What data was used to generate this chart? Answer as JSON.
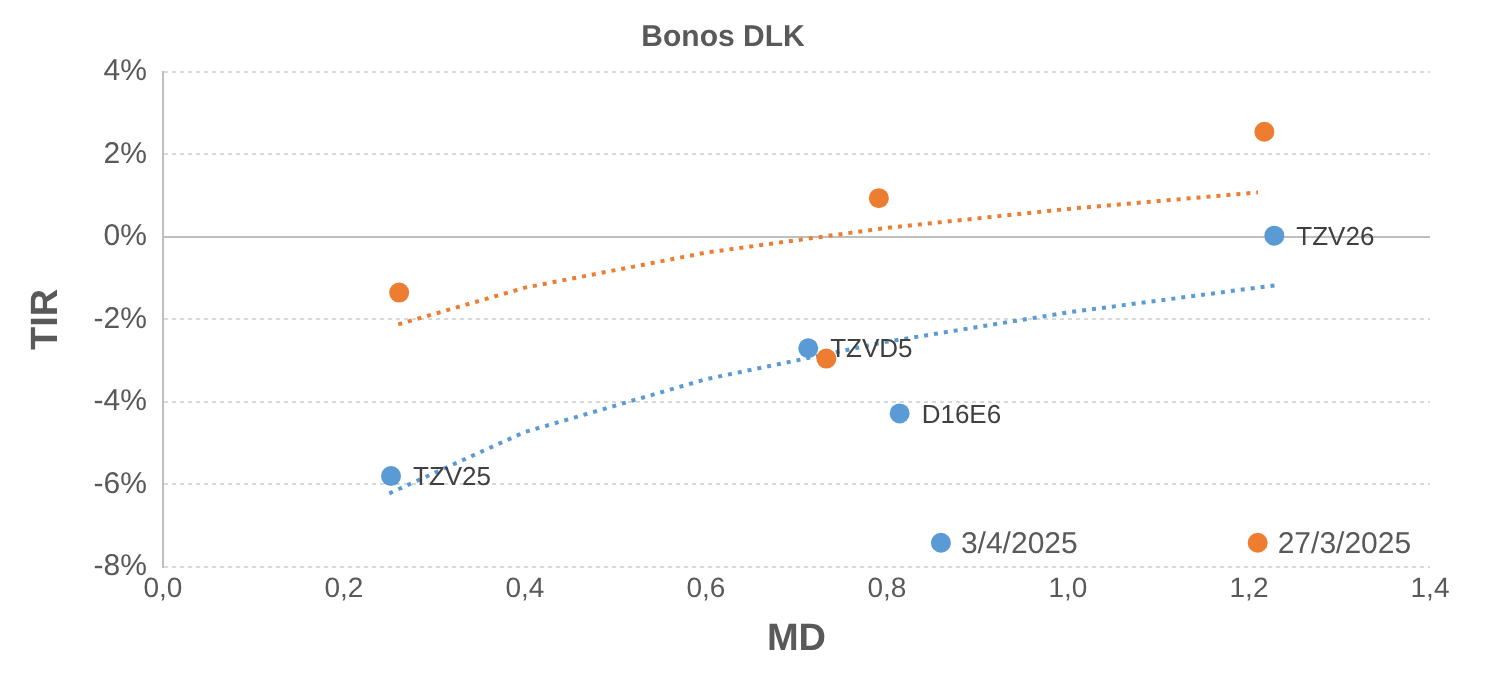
{
  "chart_data": {
    "type": "scatter",
    "title": "Bonos DLK",
    "xlabel": "MD",
    "ylabel": "TIR",
    "series": [
      {
        "name": "3/4/2025",
        "type": "scatter",
        "color": "#5b9bd5",
        "x": [
          0.252,
          0.713,
          0.814,
          1.228
        ],
        "values": [
          -5.8,
          -2.7,
          -4.28,
          0.03
        ]
      },
      {
        "name": "27/3/2025",
        "type": "scatter",
        "color": "#ed7d31",
        "x": [
          0.261,
          0.791,
          0.733,
          1.217
        ],
        "values": [
          -1.35,
          0.94,
          -2.95,
          2.55
        ]
      },
      {
        "type": "line",
        "color": "#5b9bd5",
        "line_style": "dotted",
        "marker": "none",
        "x": [
          0.25,
          0.4,
          0.6,
          0.8,
          1.0,
          1.23
        ],
        "values": [
          -6.22,
          -4.73,
          -3.45,
          -2.54,
          -1.83,
          -1.17
        ]
      },
      {
        "type": "line",
        "color": "#ed7d31",
        "line_style": "dotted",
        "marker": "none",
        "x": [
          0.26,
          0.4,
          0.6,
          0.8,
          1.0,
          1.21
        ],
        "values": [
          -2.12,
          -1.23,
          -0.38,
          0.22,
          0.68,
          1.08
        ]
      }
    ],
    "marker": "circle",
    "xlim": [
      0,
      1.4
    ],
    "xticks": [
      {
        "value": 0,
        "label": "0,0"
      },
      {
        "value": 0.2,
        "label": "0,2"
      },
      {
        "value": 0.4,
        "label": "0,4"
      },
      {
        "value": 0.6,
        "label": "0,6"
      },
      {
        "value": 0.8,
        "label": "0,8"
      },
      {
        "value": 1.0,
        "label": "1,0"
      },
      {
        "value": 1.2,
        "label": "1,2"
      },
      {
        "value": 1.4,
        "label": "1,4"
      }
    ],
    "ylim": [
      -8,
      4
    ],
    "yticks": [
      {
        "value": -8,
        "label": "-8%"
      },
      {
        "value": -6,
        "label": "-6%"
      },
      {
        "value": -4,
        "label": "-4%"
      },
      {
        "value": -2,
        "label": "-2%"
      },
      {
        "value": 0,
        "label": "0%"
      },
      {
        "value": 2,
        "label": "2%"
      },
      {
        "value": 4,
        "label": "4%"
      }
    ],
    "grid": "y",
    "legend": "bottom",
    "annotations": [
      {
        "text": "TZV25",
        "x": 0.252,
        "y": -5.8
      },
      {
        "text": "TZVD5",
        "x": 0.713,
        "y": -2.7
      },
      {
        "text": "D16E6",
        "x": 0.814,
        "y": -4.28
      },
      {
        "text": "TZV26",
        "x": 1.228,
        "y": 0.03
      }
    ]
  }
}
